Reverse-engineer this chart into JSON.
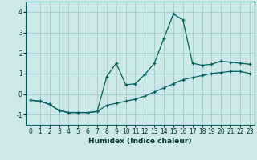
{
  "xlabel": "Humidex (Indice chaleur)",
  "bg_color": "#cce8e8",
  "grid_color": "#aacece",
  "line_color": "#006060",
  "xlim": [
    -0.5,
    23.5
  ],
  "ylim": [
    -1.5,
    4.5
  ],
  "yticks": [
    -1,
    0,
    1,
    2,
    3,
    4
  ],
  "xticks": [
    0,
    1,
    2,
    3,
    4,
    5,
    6,
    7,
    8,
    9,
    10,
    11,
    12,
    13,
    14,
    15,
    16,
    17,
    18,
    19,
    20,
    21,
    22,
    23
  ],
  "curve1_x": [
    0,
    1,
    2,
    3,
    4,
    5,
    6,
    7,
    8,
    9,
    10,
    11,
    12,
    13,
    14,
    15,
    16,
    17,
    18,
    19,
    20,
    21,
    22,
    23
  ],
  "curve1_y": [
    -0.3,
    -0.35,
    -0.5,
    -0.8,
    -0.9,
    -0.9,
    -0.9,
    -0.85,
    0.85,
    1.5,
    0.45,
    0.5,
    0.95,
    1.5,
    2.7,
    3.9,
    3.6,
    1.5,
    1.4,
    1.45,
    1.6,
    1.55,
    1.5,
    1.45
  ],
  "curve2_x": [
    0,
    1,
    2,
    3,
    4,
    5,
    6,
    7,
    8,
    9,
    10,
    11,
    12,
    13,
    14,
    15,
    16,
    17,
    18,
    19,
    20,
    21,
    22,
    23
  ],
  "curve2_y": [
    -0.3,
    -0.35,
    -0.5,
    -0.8,
    -0.9,
    -0.9,
    -0.9,
    -0.85,
    -0.55,
    -0.45,
    -0.35,
    -0.25,
    -0.1,
    0.1,
    0.3,
    0.5,
    0.7,
    0.8,
    0.9,
    1.0,
    1.05,
    1.1,
    1.1,
    1.0
  ]
}
